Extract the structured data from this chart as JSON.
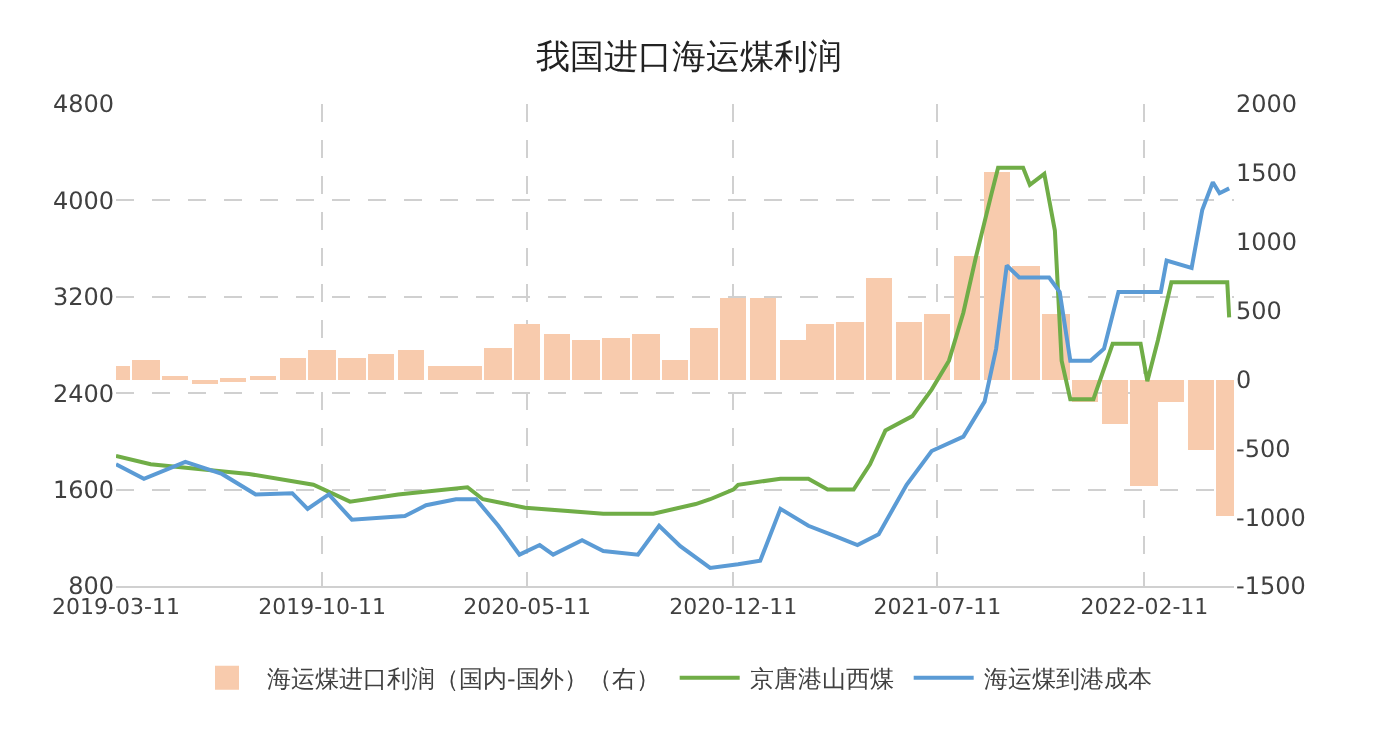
{
  "chart_data": {
    "type": "line",
    "title": "我国进口海运煤利润",
    "xlim": [
      "2019-03-11",
      "2022-05-15"
    ],
    "xticks": [
      "2019-03-11",
      "2019-10-11",
      "2020-05-11",
      "2020-12-11",
      "2021-07-11",
      "2022-02-11"
    ],
    "ylim": [
      800,
      4800
    ],
    "yticks": [
      800,
      1600,
      2400,
      3200,
      4000,
      4800
    ],
    "y2lim": [
      -1500,
      2000
    ],
    "y2ticks": [
      -1500,
      -1000,
      -500,
      0,
      500,
      1000,
      1500,
      2000
    ],
    "grid": true,
    "legend": "bottom",
    "line_style": "solid",
    "marker": "none",
    "series": [
      {
        "name": "海运煤进口利润（国内-国外）（右）",
        "type": "bar",
        "axis": "y2",
        "color": "#f8cbad",
        "x": [
          "2019-03-11",
          "2019-04-11",
          "2019-05-11",
          "2019-06-11",
          "2019-07-11",
          "2019-08-11",
          "2019-09-11",
          "2019-10-11",
          "2019-11-11",
          "2019-12-11",
          "2020-01-11",
          "2020-02-11",
          "2020-03-11",
          "2020-04-11",
          "2020-05-11",
          "2020-06-11",
          "2020-07-11",
          "2020-08-11",
          "2020-09-11",
          "2020-10-11",
          "2020-11-11",
          "2020-12-11",
          "2021-01-11",
          "2021-02-11",
          "2021-03-11",
          "2021-04-11",
          "2021-05-11",
          "2021-06-11",
          "2021-07-11",
          "2021-08-11",
          "2021-09-11",
          "2021-10-11",
          "2021-11-11",
          "2021-12-11",
          "2022-01-11",
          "2022-02-11",
          "2022-03-11",
          "2022-04-11",
          "2022-05-11"
        ],
        "values": [
          100,
          140,
          30,
          -40,
          -20,
          30,
          150,
          210,
          150,
          180,
          210,
          100,
          100,
          230,
          400,
          330,
          290,
          300,
          330,
          140,
          380,
          590,
          590,
          290,
          400,
          420,
          740,
          420,
          480,
          890,
          1500,
          830,
          480,
          -170,
          -320,
          -780,
          -170,
          -510,
          -990
        ]
      },
      {
        "name": "京唐港山西煤",
        "color": "#70ad47",
        "x": [
          "2019-03-11",
          "2019-04-16",
          "2019-07-27",
          "2019-10-02",
          "2019-11-09",
          "2019-12-29",
          "2020-03-10",
          "2020-03-26",
          "2020-05-09",
          "2020-07-29",
          "2020-09-19",
          "2020-11-02",
          "2020-11-17",
          "2020-12-11",
          "2020-12-16",
          "2021-01-29",
          "2021-02-27",
          "2021-03-19",
          "2021-04-15",
          "2021-05-02",
          "2021-05-18",
          "2021-06-15",
          "2021-07-05",
          "2021-07-23",
          "2021-08-07",
          "2021-08-20",
          "2021-09-05",
          "2021-09-12",
          "2021-10-08",
          "2021-10-15",
          "2021-10-30",
          "2021-11-10",
          "2021-11-17",
          "2021-11-26",
          "2021-12-20",
          "2022-01-09",
          "2022-02-07",
          "2022-02-14",
          "2022-02-25",
          "2022-03-11",
          "2022-05-08",
          "2022-05-10"
        ],
        "values": [
          1880,
          1810,
          1730,
          1640,
          1500,
          1560,
          1620,
          1520,
          1450,
          1400,
          1400,
          1480,
          1520,
          1600,
          1640,
          1690,
          1690,
          1600,
          1600,
          1810,
          2090,
          2210,
          2430,
          2670,
          3070,
          3530,
          4050,
          4270,
          4270,
          4130,
          4220,
          3750,
          2670,
          2350,
          2350,
          2810,
          2810,
          2500,
          2840,
          3320,
          3320,
          3030
        ]
      },
      {
        "name": "海运煤到港成本",
        "color": "#5b9bd5",
        "x": [
          "2019-03-11",
          "2019-04-09",
          "2019-05-22",
          "2019-06-29",
          "2019-08-03",
          "2019-09-10",
          "2019-09-26",
          "2019-10-18",
          "2019-11-11",
          "2020-01-05",
          "2020-01-27",
          "2020-02-27",
          "2020-03-19",
          "2020-04-11",
          "2020-05-03",
          "2020-05-24",
          "2020-06-07",
          "2020-07-07",
          "2020-07-29",
          "2020-09-03",
          "2020-09-25",
          "2020-10-17",
          "2020-11-17",
          "2020-12-16",
          "2021-01-08",
          "2021-01-29",
          "2021-02-27",
          "2021-03-28",
          "2021-04-19",
          "2021-05-11",
          "2021-06-09",
          "2021-07-05",
          "2021-08-07",
          "2021-08-29",
          "2021-09-10",
          "2021-09-21",
          "2021-10-04",
          "2021-11-04",
          "2021-11-15",
          "2021-11-26",
          "2021-12-17",
          "2021-12-31",
          "2022-01-15",
          "2022-02-28",
          "2022-03-06",
          "2022-04-01",
          "2022-04-12",
          "2022-04-23",
          "2022-04-30",
          "2022-05-10"
        ],
        "values": [
          1810,
          1690,
          1830,
          1730,
          1560,
          1570,
          1440,
          1560,
          1350,
          1380,
          1470,
          1520,
          1520,
          1300,
          1060,
          1140,
          1060,
          1180,
          1090,
          1060,
          1300,
          1130,
          950,
          980,
          1010,
          1440,
          1300,
          1210,
          1140,
          1230,
          1640,
          1920,
          2040,
          2330,
          2770,
          3460,
          3360,
          3360,
          3240,
          2670,
          2670,
          2770,
          3240,
          3240,
          3500,
          3440,
          3920,
          4150,
          4060,
          4100
        ]
      }
    ]
  }
}
